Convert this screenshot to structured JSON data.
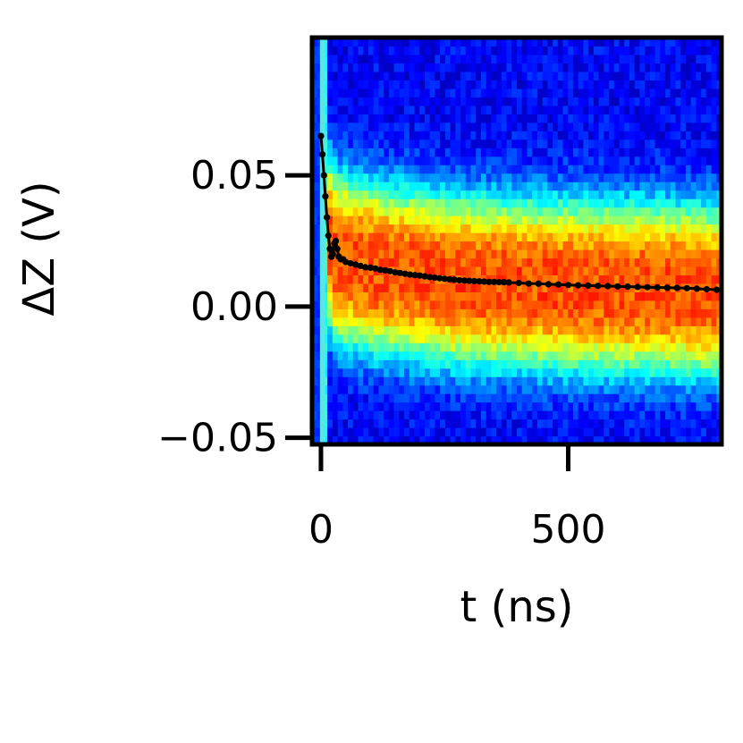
{
  "chart_data": {
    "type": "heatmap",
    "title": "",
    "xlabel": "t (ns)",
    "ylabel": "ΔZ (V)",
    "xlim": [
      -18,
      810
    ],
    "ylim": [
      -0.0525,
      0.1025
    ],
    "xticks": [
      0,
      500
    ],
    "xtick_labels": [
      "0",
      "500"
    ],
    "yticks": [
      -0.05,
      0.0,
      0.05
    ],
    "ytick_labels": [
      "−0.05",
      "0.00",
      "0.05"
    ],
    "colormap": "jet",
    "heatmap_description_values": {
      "center_offset_v": {
        "t": [
          0,
          20,
          40,
          100,
          200,
          300,
          400,
          500,
          600,
          700,
          800
        ],
        "dz": [
          0.06,
          0.02,
          0.018,
          0.015,
          0.012,
          0.01,
          0.009,
          0.008,
          0.0075,
          0.007,
          0.006
        ]
      },
      "band_halfwidth_v": 0.022
    },
    "series": [
      {
        "marker": "dot",
        "color": "#000000",
        "x": [
          0,
          3,
          6,
          9,
          12,
          15,
          18,
          21,
          24,
          27,
          30,
          33,
          36,
          40,
          45,
          50,
          60,
          70,
          80,
          90,
          100,
          110,
          120,
          130,
          140,
          150,
          160,
          170,
          180,
          190,
          200,
          210,
          220,
          230,
          240,
          250,
          260,
          270,
          280,
          290,
          300,
          310,
          320,
          330,
          340,
          350,
          360,
          370,
          380,
          400,
          420,
          440,
          460,
          480,
          500,
          520,
          540,
          560,
          580,
          600,
          620,
          640,
          660,
          680,
          700,
          720,
          740,
          760,
          780,
          800
        ],
        "y": [
          0.065,
          0.058,
          0.05,
          0.042,
          0.034,
          0.027,
          0.022,
          0.019,
          0.02,
          0.024,
          0.025,
          0.022,
          0.019,
          0.018,
          0.018,
          0.017,
          0.0165,
          0.016,
          0.0155,
          0.015,
          0.0148,
          0.0145,
          0.014,
          0.0138,
          0.0135,
          0.013,
          0.0128,
          0.0125,
          0.0122,
          0.012,
          0.0118,
          0.0115,
          0.0112,
          0.011,
          0.0108,
          0.0106,
          0.0104,
          0.0102,
          0.01,
          0.0099,
          0.0098,
          0.0097,
          0.0096,
          0.0095,
          0.0094,
          0.0094,
          0.0093,
          0.0093,
          0.0092,
          0.009,
          0.0088,
          0.0087,
          0.0085,
          0.0084,
          0.0082,
          0.0081,
          0.008,
          0.0079,
          0.0078,
          0.0077,
          0.0076,
          0.0075,
          0.0074,
          0.0073,
          0.0072,
          0.0071,
          0.007,
          0.0068,
          0.0066,
          0.0064
        ]
      }
    ]
  }
}
